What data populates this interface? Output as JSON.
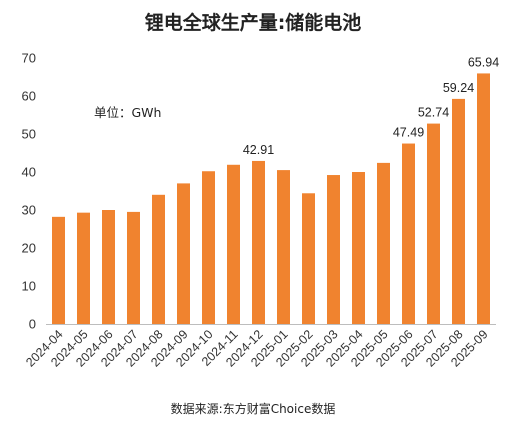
{
  "chart_data": {
    "type": "bar",
    "title": "锂电全球生产量:储能电池",
    "unit_note": "单位：GWh",
    "source": "数据来源:东方财富Choice数据",
    "categories": [
      "2024-04",
      "2024-05",
      "2024-06",
      "2024-07",
      "2024-08",
      "2024-09",
      "2024-10",
      "2024-11",
      "2024-12",
      "2025-01",
      "2025-02",
      "2025-03",
      "2025-04",
      "2025-05",
      "2025-06",
      "2025-07",
      "2025-08",
      "2025-09"
    ],
    "values": [
      28.2,
      29.3,
      30.0,
      29.5,
      34.0,
      37.0,
      40.2,
      41.9,
      42.91,
      40.5,
      34.4,
      39.2,
      40.0,
      42.4,
      47.49,
      52.74,
      59.24,
      65.94
    ],
    "data_labels": [
      {
        "index": 8,
        "text": "42.91"
      },
      {
        "index": 14,
        "text": "47.49"
      },
      {
        "index": 15,
        "text": "52.74"
      },
      {
        "index": 16,
        "text": "59.24"
      },
      {
        "index": 17,
        "text": "65.94"
      }
    ],
    "yticks": [
      0,
      10,
      20,
      30,
      40,
      50,
      60,
      70
    ],
    "ylim": [
      0,
      70
    ],
    "bar_color": "#f0832f",
    "grid": false,
    "legend": false
  }
}
